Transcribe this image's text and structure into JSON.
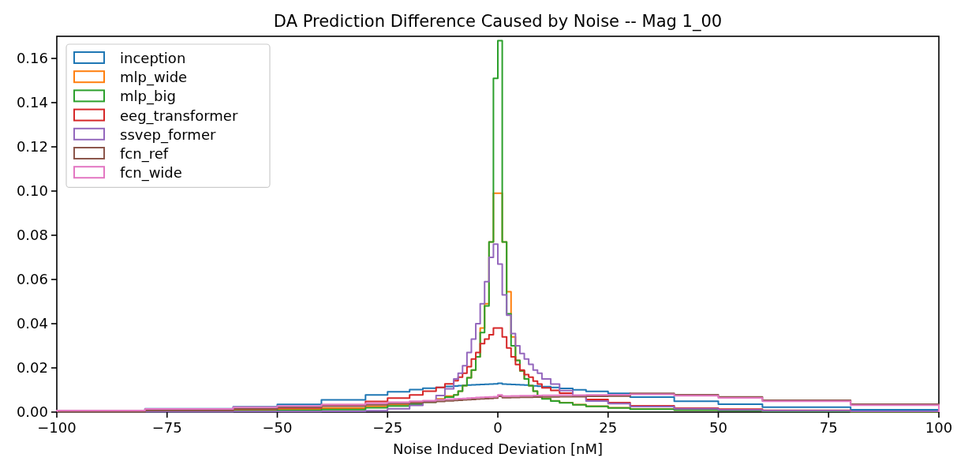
{
  "chart_data": {
    "type": "histogram",
    "title": "DA Prediction Difference Caused by Noise -- Mag 1_00",
    "xlabel": "Noise Induced Deviation [nM]",
    "bins": [
      -100,
      -80,
      -60,
      -50,
      -40,
      -30,
      -25,
      -20,
      -17,
      -14,
      -12,
      -10,
      -9,
      -8,
      -7,
      -6,
      -5,
      -4,
      -3,
      -2,
      -1,
      0,
      1,
      2,
      3,
      4,
      5,
      6,
      7,
      8,
      9,
      10,
      12,
      14,
      17,
      20,
      25,
      30,
      40,
      50,
      60,
      80,
      100
    ],
    "series": [
      {
        "name": "inception",
        "color": "#1f77b4",
        "values": [
          0.0007,
          0.0015,
          0.0024,
          0.0035,
          0.0055,
          0.0078,
          0.0092,
          0.0102,
          0.0108,
          0.0112,
          0.0116,
          0.0118,
          0.012,
          0.0121,
          0.0122,
          0.0123,
          0.0124,
          0.0125,
          0.0126,
          0.0127,
          0.0128,
          0.013,
          0.0127,
          0.0126,
          0.0125,
          0.0124,
          0.0123,
          0.0122,
          0.012,
          0.0119,
          0.0117,
          0.0115,
          0.0112,
          0.0107,
          0.0101,
          0.0094,
          0.0085,
          0.0068,
          0.0049,
          0.0036,
          0.0022,
          0.0011
        ]
      },
      {
        "name": "mlp_wide",
        "color": "#ff7f0e",
        "values": [
          0.0006,
          0.0008,
          0.001,
          0.0013,
          0.0018,
          0.0026,
          0.0034,
          0.0042,
          0.005,
          0.006,
          0.0072,
          0.0078,
          0.0095,
          0.012,
          0.0155,
          0.019,
          0.025,
          0.038,
          0.049,
          0.077,
          0.099,
          0.099,
          0.077,
          0.0545,
          0.034,
          0.0234,
          0.0187,
          0.015,
          0.012,
          0.0095,
          0.0075,
          0.0061,
          0.0051,
          0.0043,
          0.0034,
          0.0027,
          0.002,
          0.0014,
          0.001,
          0.0007,
          0.0004,
          0.0002
        ]
      },
      {
        "name": "mlp_big",
        "color": "#2ca02c",
        "values": [
          0.0002,
          0.0003,
          0.0005,
          0.0008,
          0.0012,
          0.002,
          0.0028,
          0.0036,
          0.0045,
          0.0055,
          0.0068,
          0.0078,
          0.0095,
          0.012,
          0.0155,
          0.019,
          0.025,
          0.036,
          0.048,
          0.077,
          0.151,
          0.168,
          0.077,
          0.0445,
          0.03,
          0.0234,
          0.0187,
          0.015,
          0.012,
          0.0095,
          0.0075,
          0.006,
          0.005,
          0.0042,
          0.0033,
          0.0026,
          0.0019,
          0.0013,
          0.0009,
          0.0006,
          0.0004,
          0.0002
        ]
      },
      {
        "name": "eeg_transformer",
        "color": "#d62728",
        "values": [
          0.0004,
          0.0008,
          0.0014,
          0.0019,
          0.0033,
          0.0048,
          0.0063,
          0.0078,
          0.0095,
          0.0112,
          0.0128,
          0.0142,
          0.0158,
          0.0176,
          0.0205,
          0.024,
          0.027,
          0.031,
          0.033,
          0.035,
          0.038,
          0.038,
          0.034,
          0.029,
          0.025,
          0.0215,
          0.019,
          0.017,
          0.0158,
          0.014,
          0.0127,
          0.011,
          0.0098,
          0.0086,
          0.0072,
          0.0057,
          0.0043,
          0.0029,
          0.0018,
          0.0013,
          0.0008,
          0.0004
        ]
      },
      {
        "name": "ssvep_former",
        "color": "#9467bd",
        "values": [
          0.0002,
          0.0002,
          0.0003,
          0.0003,
          0.0004,
          0.0006,
          0.0015,
          0.003,
          0.005,
          0.0075,
          0.0105,
          0.015,
          0.0176,
          0.021,
          0.027,
          0.033,
          0.04,
          0.049,
          0.059,
          0.07,
          0.076,
          0.067,
          0.053,
          0.0438,
          0.0355,
          0.03,
          0.0265,
          0.024,
          0.0216,
          0.019,
          0.0176,
          0.015,
          0.0127,
          0.0097,
          0.0072,
          0.005,
          0.0038,
          0.0025,
          0.0015,
          0.001,
          0.0006,
          0.0004
        ]
      },
      {
        "name": "fcn_ref",
        "color": "#8c564b",
        "values": [
          0.0002,
          0.0007,
          0.0015,
          0.0021,
          0.0027,
          0.0033,
          0.0038,
          0.0042,
          0.0045,
          0.0048,
          0.0051,
          0.0053,
          0.0054,
          0.0055,
          0.0056,
          0.0057,
          0.0059,
          0.006,
          0.0061,
          0.0062,
          0.0063,
          0.0071,
          0.0065,
          0.0065,
          0.0066,
          0.0066,
          0.0067,
          0.0067,
          0.0067,
          0.0068,
          0.0068,
          0.0069,
          0.0069,
          0.007,
          0.007,
          0.0071,
          0.0072,
          0.0085,
          0.0079,
          0.0069,
          0.0054,
          0.0036
        ]
      },
      {
        "name": "fcn_wide",
        "color": "#e377c2",
        "values": [
          0.0007,
          0.0014,
          0.0022,
          0.0028,
          0.0034,
          0.004,
          0.0045,
          0.0049,
          0.0052,
          0.0055,
          0.0058,
          0.006,
          0.0061,
          0.0062,
          0.0063,
          0.0064,
          0.0066,
          0.0067,
          0.0068,
          0.0069,
          0.007,
          0.0078,
          0.0072,
          0.0072,
          0.0073,
          0.0073,
          0.0074,
          0.0074,
          0.0074,
          0.0075,
          0.0075,
          0.0076,
          0.0076,
          0.0077,
          0.0077,
          0.0078,
          0.0079,
          0.008,
          0.0074,
          0.0064,
          0.0049,
          0.0031
        ]
      }
    ],
    "xlim": [
      -100,
      100
    ],
    "xticks": [
      {
        "value": -100,
        "label": "−100"
      },
      {
        "value": -75,
        "label": "−75"
      },
      {
        "value": -50,
        "label": "−50"
      },
      {
        "value": -25,
        "label": "−25"
      },
      0,
      25,
      50,
      75,
      100
    ],
    "ylim": [
      0,
      0.17
    ],
    "yticks": [
      {
        "value": 0,
        "label": "0.00"
      },
      {
        "value": 0.02,
        "label": "0.02"
      },
      {
        "value": 0.04,
        "label": "0.04"
      },
      {
        "value": 0.06,
        "label": "0.06"
      },
      {
        "value": 0.08,
        "label": "0.08"
      },
      {
        "value": 0.1,
        "label": "0.10"
      },
      {
        "value": 0.12,
        "label": "0.12"
      },
      {
        "value": 0.14,
        "label": "0.14"
      },
      {
        "value": 0.16,
        "label": "0.16"
      }
    ],
    "legend": "top left",
    "grid": false
  }
}
